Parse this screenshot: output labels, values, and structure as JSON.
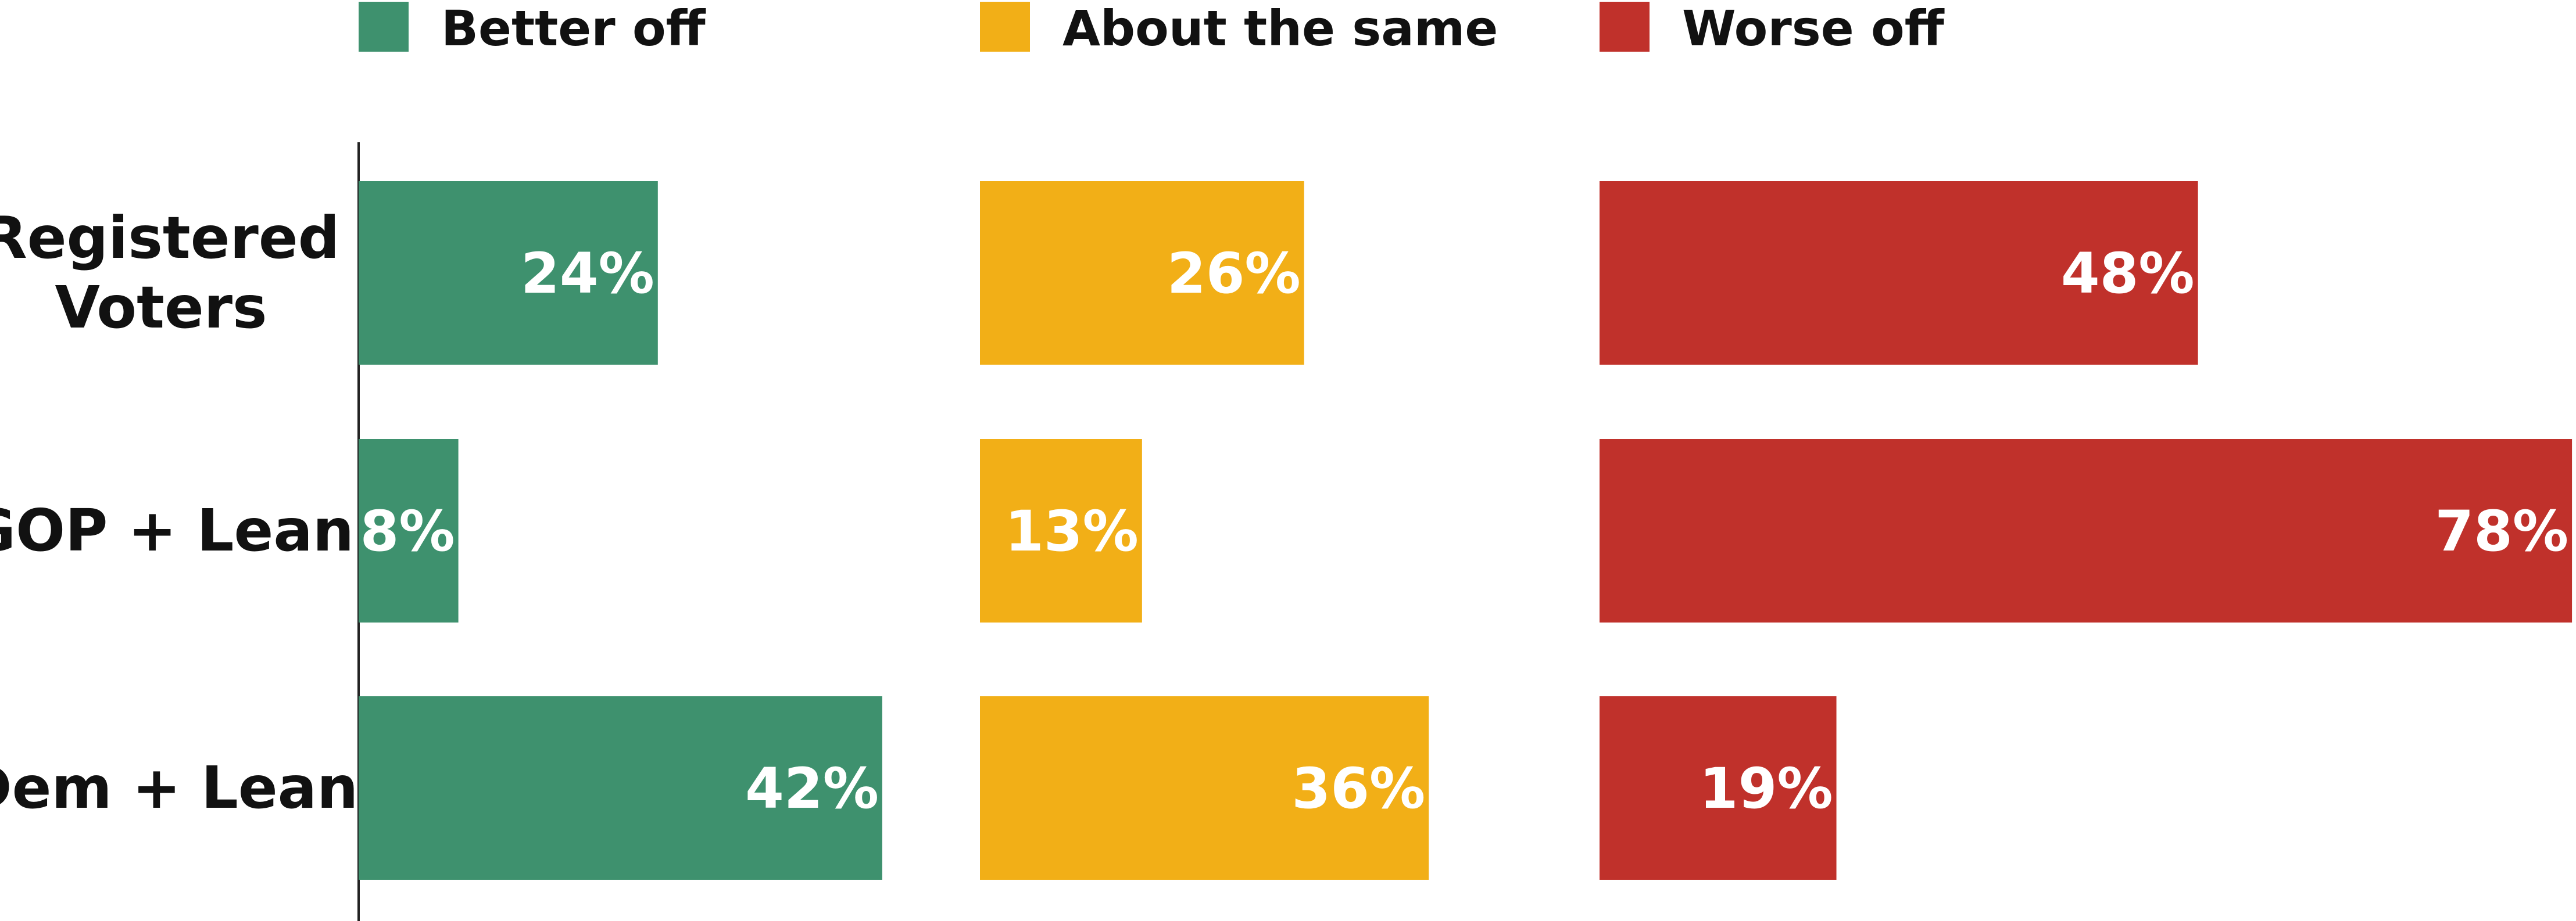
{
  "chart_data": {
    "type": "bar",
    "orientation": "horizontal",
    "layout": "small-multiples",
    "categories": [
      [
        "Registered",
        "Voters"
      ],
      [
        "GOP + Lean"
      ],
      [
        "Dem + Lean"
      ]
    ],
    "series": [
      {
        "name": "Better off",
        "color": "#3e916e",
        "values": [
          24,
          8,
          42
        ],
        "labels": [
          "24%",
          "8%",
          "42%"
        ]
      },
      {
        "name": "About the same",
        "color": "#f2af17",
        "values": [
          26,
          13,
          36
        ],
        "labels": [
          "26%",
          "13%",
          "36%"
        ]
      },
      {
        "name": "Worse off",
        "color": "#c0312b",
        "values": [
          48,
          78,
          19
        ],
        "labels": [
          "48%",
          "78%",
          "19%"
        ]
      }
    ],
    "unit": "%",
    "legend_position": "top",
    "grid": false
  }
}
